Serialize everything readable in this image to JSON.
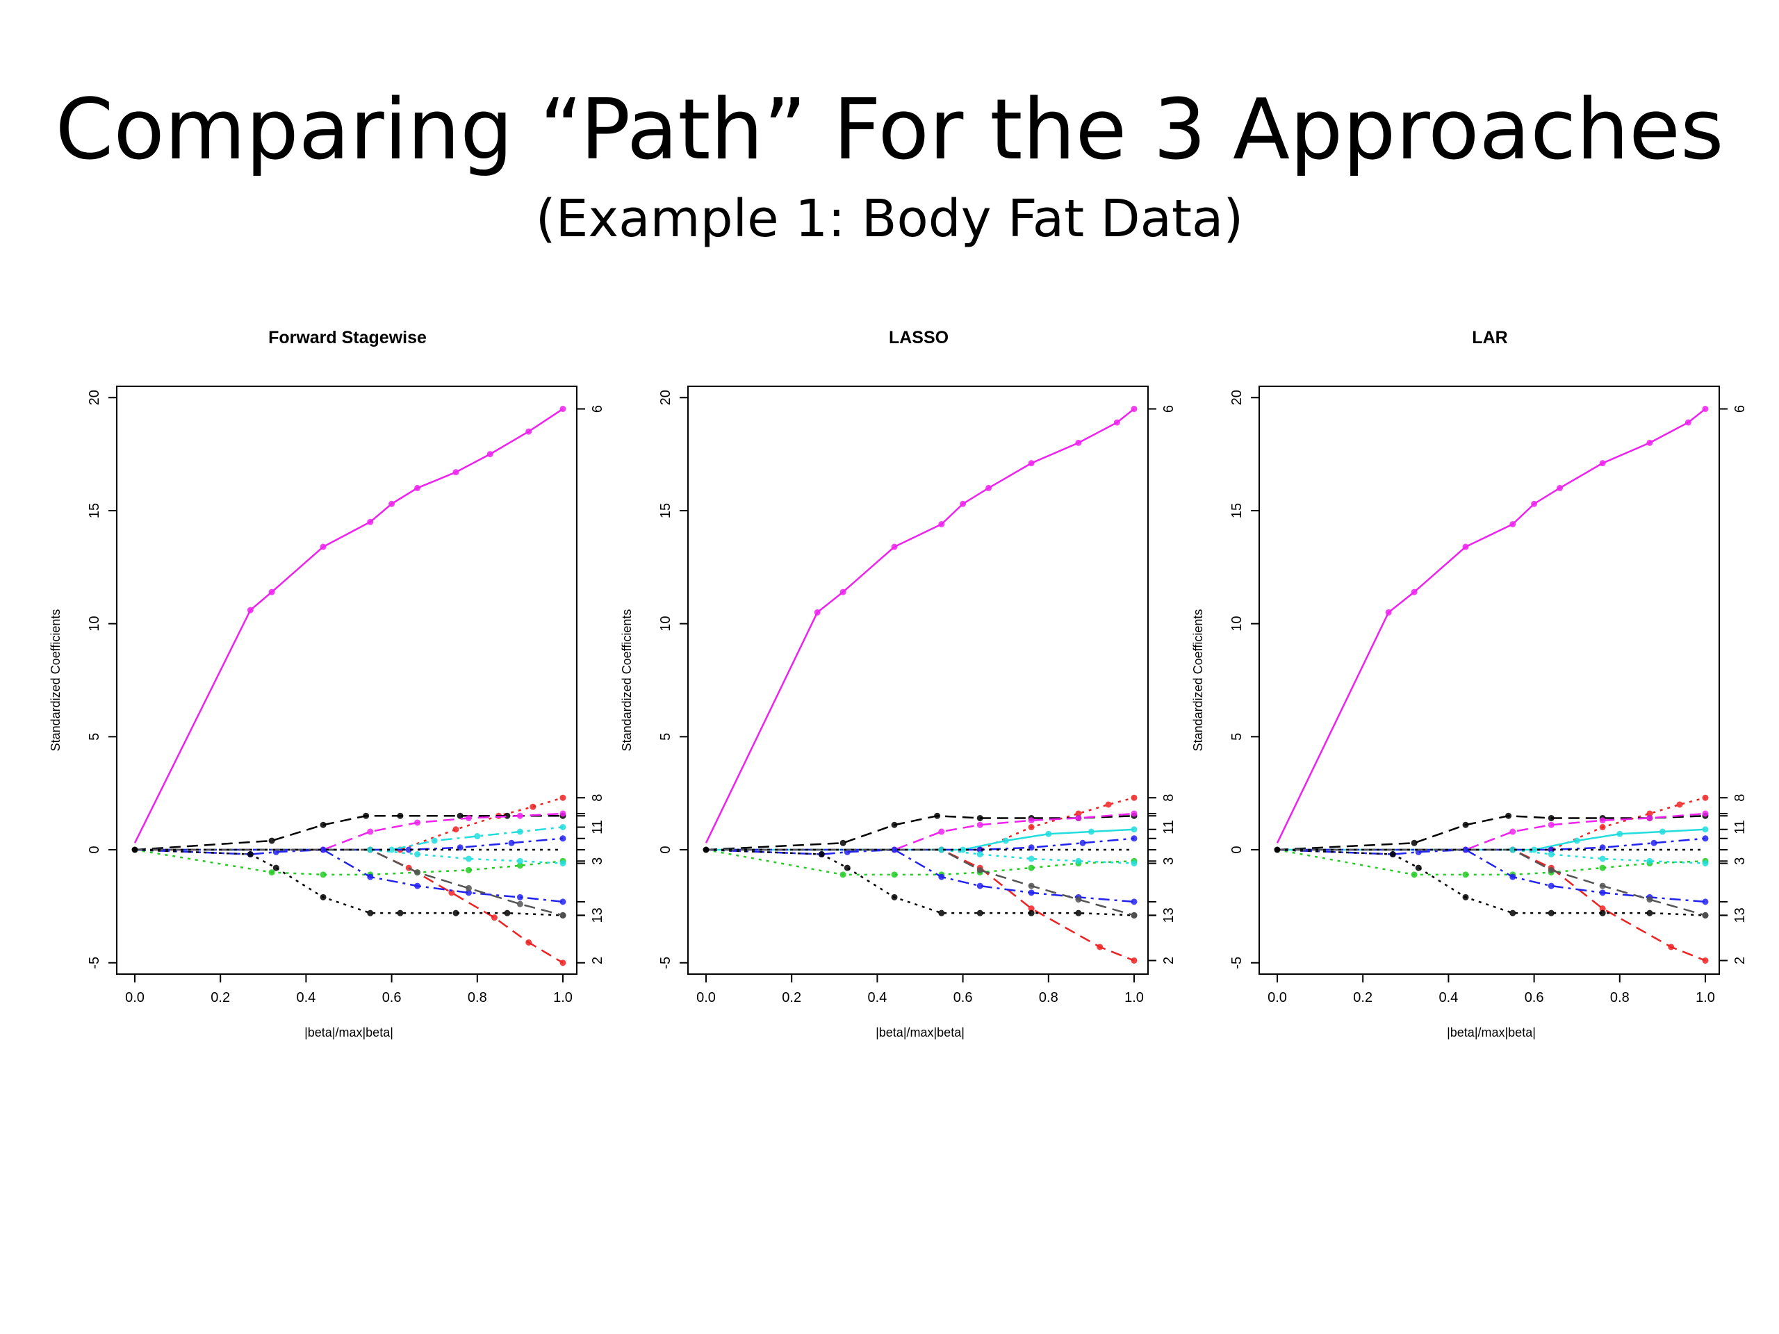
{
  "slide": {
    "title": "Comparing “Path” For the 3 Approaches",
    "subtitle": "(Example 1: Body Fat Data)"
  },
  "colors": {
    "magenta": "#ee22ee",
    "red": "#ee2222",
    "black": "#000000",
    "blue": "#2222ee",
    "cyan": "#22dddd",
    "green": "#22cc22",
    "gray": "#555555"
  },
  "chart_data": [
    {
      "type": "line",
      "title": "Forward Stagewise",
      "xlabel": "|beta|/max|beta|",
      "ylabel": "Standardized Coefficients",
      "xlim": [
        0,
        1
      ],
      "ylim": [
        -5.5,
        20.5
      ],
      "xticks": [
        "0.0",
        "0.2",
        "0.4",
        "0.6",
        "0.8",
        "1.0"
      ],
      "yticks": [
        "-5",
        "0",
        "5",
        "10",
        "15",
        "20"
      ],
      "right_labels": [
        "6",
        "8",
        "11",
        "3",
        "13",
        "2"
      ],
      "series": [
        {
          "color": "magenta",
          "dash": "solid-dash",
          "x": [
            0,
            0.27,
            0.32,
            0.44,
            0.55,
            0.6,
            0.66,
            0.75,
            0.83,
            0.92,
            1.0
          ],
          "y": [
            0.3,
            10.6,
            11.4,
            13.4,
            14.5,
            15.3,
            16.0,
            16.7,
            17.5,
            18.5,
            19.5
          ]
        },
        {
          "color": "red",
          "dash": "dash",
          "x": [
            0,
            0.55,
            0.64,
            0.74,
            0.84,
            0.92,
            1.0
          ],
          "y": [
            0,
            0,
            -0.8,
            -1.9,
            -3.0,
            -4.1,
            -5.0
          ]
        },
        {
          "color": "red",
          "dash": "dot",
          "x": [
            0,
            0.62,
            0.75,
            0.85,
            0.93,
            1.0
          ],
          "y": [
            0,
            0,
            0.9,
            1.5,
            1.9,
            2.3
          ]
        },
        {
          "color": "black",
          "dash": "dash",
          "x": [
            0,
            0.32,
            0.44,
            0.54,
            0.62,
            0.76,
            0.87,
            1.0
          ],
          "y": [
            0,
            0.4,
            1.1,
            1.5,
            1.5,
            1.5,
            1.5,
            1.5
          ]
        },
        {
          "color": "magenta",
          "dash": "dash",
          "x": [
            0,
            0.44,
            0.55,
            0.66,
            0.78,
            0.9,
            1.0
          ],
          "y": [
            0,
            0,
            0.8,
            1.2,
            1.4,
            1.5,
            1.6
          ]
        },
        {
          "color": "cyan",
          "dash": "dashdot",
          "x": [
            0,
            0.6,
            0.7,
            0.8,
            0.9,
            1.0
          ],
          "y": [
            0,
            0,
            0.4,
            0.6,
            0.8,
            1.0
          ]
        },
        {
          "color": "blue",
          "dash": "dashdot",
          "x": [
            0,
            0.64,
            0.76,
            0.88,
            1.0
          ],
          "y": [
            0,
            0,
            0.1,
            0.3,
            0.5
          ]
        },
        {
          "color": "green",
          "dash": "dot",
          "x": [
            0,
            0.32,
            0.44,
            0.55,
            0.66,
            0.78,
            0.9,
            1.0
          ],
          "y": [
            0,
            -1.0,
            -1.1,
            -1.1,
            -1.0,
            -0.9,
            -0.7,
            -0.5
          ]
        },
        {
          "color": "blue",
          "dash": "dashdot",
          "x": [
            0,
            0.27,
            0.33,
            0.44,
            0.55,
            0.66,
            0.78,
            0.9,
            1.0
          ],
          "y": [
            0,
            -0.2,
            -0.1,
            0,
            -1.2,
            -1.6,
            -1.9,
            -2.1,
            -2.3
          ]
        },
        {
          "color": "black",
          "dash": "dot",
          "x": [
            0,
            0.27,
            0.33,
            0.44,
            0.55,
            0.62,
            0.75,
            0.87,
            1.0
          ],
          "y": [
            0,
            -0.2,
            -0.8,
            -2.1,
            -2.8,
            -2.8,
            -2.8,
            -2.8,
            -2.9
          ]
        },
        {
          "color": "gray",
          "dash": "dash",
          "x": [
            0,
            0.55,
            0.66,
            0.78,
            0.9,
            1.0
          ],
          "y": [
            0,
            0,
            -1.0,
            -1.7,
            -2.4,
            -2.9
          ]
        },
        {
          "color": "cyan",
          "dash": "dot",
          "x": [
            0,
            0.55,
            0.66,
            0.78,
            0.9,
            1.0
          ],
          "y": [
            0,
            0,
            -0.2,
            -0.4,
            -0.5,
            -0.6
          ]
        },
        {
          "color": "black",
          "dash": "dot",
          "x": [
            0,
            1.0
          ],
          "y": [
            0,
            0
          ]
        }
      ]
    },
    {
      "type": "line",
      "title": "LASSO",
      "xlabel": "|beta|/max|beta|",
      "ylabel": "Standardized Coefficients",
      "xlim": [
        0,
        1
      ],
      "ylim": [
        -5.5,
        20.5
      ],
      "xticks": [
        "0.0",
        "0.2",
        "0.4",
        "0.6",
        "0.8",
        "1.0"
      ],
      "yticks": [
        "-5",
        "0",
        "5",
        "10",
        "15",
        "20"
      ],
      "right_labels": [
        "6",
        "8",
        "11",
        "3",
        "13",
        "2"
      ],
      "series": [
        {
          "color": "magenta",
          "dash": "solid-dash",
          "x": [
            0,
            0.26,
            0.32,
            0.44,
            0.55,
            0.6,
            0.66,
            0.76,
            0.87,
            0.96,
            1.0
          ],
          "y": [
            0.3,
            10.5,
            11.4,
            13.4,
            14.4,
            15.3,
            16.0,
            17.1,
            18.0,
            18.9,
            19.5
          ]
        },
        {
          "color": "red",
          "dash": "dash",
          "x": [
            0,
            0.55,
            0.64,
            0.76,
            0.92,
            1.0
          ],
          "y": [
            0,
            0,
            -0.8,
            -2.6,
            -4.3,
            -4.9
          ]
        },
        {
          "color": "red",
          "dash": "dot",
          "x": [
            0,
            0.64,
            0.76,
            0.87,
            0.94,
            1.0
          ],
          "y": [
            0,
            0,
            1.0,
            1.6,
            2.0,
            2.3
          ]
        },
        {
          "color": "black",
          "dash": "dash",
          "x": [
            0,
            0.32,
            0.44,
            0.54,
            0.64,
            0.76,
            0.87,
            1.0
          ],
          "y": [
            0,
            0.3,
            1.1,
            1.5,
            1.4,
            1.4,
            1.4,
            1.5
          ]
        },
        {
          "color": "magenta",
          "dash": "dash",
          "x": [
            0,
            0.44,
            0.55,
            0.64,
            0.76,
            0.87,
            1.0
          ],
          "y": [
            0,
            0,
            0.8,
            1.1,
            1.3,
            1.4,
            1.6
          ]
        },
        {
          "color": "cyan",
          "dash": "solid",
          "x": [
            0,
            0.6,
            0.7,
            0.8,
            0.9,
            1.0
          ],
          "y": [
            0,
            0,
            0.4,
            0.7,
            0.8,
            0.9
          ]
        },
        {
          "color": "blue",
          "dash": "dashdot",
          "x": [
            0,
            0.64,
            0.76,
            0.88,
            1.0
          ],
          "y": [
            0,
            0,
            0.1,
            0.3,
            0.5
          ]
        },
        {
          "color": "green",
          "dash": "dot",
          "x": [
            0,
            0.32,
            0.44,
            0.55,
            0.64,
            0.76,
            0.87,
            1.0
          ],
          "y": [
            0,
            -1.1,
            -1.1,
            -1.1,
            -1.0,
            -0.8,
            -0.6,
            -0.5
          ]
        },
        {
          "color": "blue",
          "dash": "dashdot",
          "x": [
            0,
            0.27,
            0.33,
            0.44,
            0.55,
            0.64,
            0.76,
            0.87,
            1.0
          ],
          "y": [
            0,
            -0.2,
            -0.1,
            0,
            -1.2,
            -1.6,
            -1.9,
            -2.1,
            -2.3
          ]
        },
        {
          "color": "black",
          "dash": "dot",
          "x": [
            0,
            0.27,
            0.33,
            0.44,
            0.55,
            0.64,
            0.76,
            0.87,
            1.0
          ],
          "y": [
            0,
            -0.2,
            -0.8,
            -2.1,
            -2.8,
            -2.8,
            -2.8,
            -2.8,
            -2.9
          ]
        },
        {
          "color": "gray",
          "dash": "dash",
          "x": [
            0,
            0.55,
            0.64,
            0.76,
            0.87,
            1.0
          ],
          "y": [
            0,
            0,
            -0.9,
            -1.6,
            -2.2,
            -2.9
          ]
        },
        {
          "color": "cyan",
          "dash": "dot",
          "x": [
            0,
            0.55,
            0.64,
            0.76,
            0.87,
            1.0
          ],
          "y": [
            0,
            0,
            -0.2,
            -0.4,
            -0.5,
            -0.6
          ]
        },
        {
          "color": "black",
          "dash": "dot",
          "x": [
            0,
            1.0
          ],
          "y": [
            0,
            0
          ]
        }
      ]
    },
    {
      "type": "line",
      "title": "LAR",
      "xlabel": "|beta|/max|beta|",
      "ylabel": "Standardized Coefficients",
      "xlim": [
        0,
        1
      ],
      "ylim": [
        -5.5,
        20.5
      ],
      "xticks": [
        "0.0",
        "0.2",
        "0.4",
        "0.6",
        "0.8",
        "1.0"
      ],
      "yticks": [
        "-5",
        "0",
        "5",
        "10",
        "15",
        "20"
      ],
      "right_labels": [
        "6",
        "8",
        "11",
        "3",
        "13",
        "2"
      ],
      "series": [
        {
          "color": "magenta",
          "dash": "solid-dash",
          "x": [
            0,
            0.26,
            0.32,
            0.44,
            0.55,
            0.6,
            0.66,
            0.76,
            0.87,
            0.96,
            1.0
          ],
          "y": [
            0.3,
            10.5,
            11.4,
            13.4,
            14.4,
            15.3,
            16.0,
            17.1,
            18.0,
            18.9,
            19.5
          ]
        },
        {
          "color": "red",
          "dash": "dash",
          "x": [
            0,
            0.55,
            0.64,
            0.76,
            0.92,
            1.0
          ],
          "y": [
            0,
            0,
            -0.8,
            -2.6,
            -4.3,
            -4.9
          ]
        },
        {
          "color": "red",
          "dash": "dot",
          "x": [
            0,
            0.64,
            0.76,
            0.87,
            0.94,
            1.0
          ],
          "y": [
            0,
            0,
            1.0,
            1.6,
            2.0,
            2.3
          ]
        },
        {
          "color": "black",
          "dash": "dash",
          "x": [
            0,
            0.32,
            0.44,
            0.54,
            0.64,
            0.76,
            0.87,
            1.0
          ],
          "y": [
            0,
            0.3,
            1.1,
            1.5,
            1.4,
            1.4,
            1.4,
            1.5
          ]
        },
        {
          "color": "magenta",
          "dash": "dash",
          "x": [
            0,
            0.44,
            0.55,
            0.64,
            0.76,
            0.87,
            1.0
          ],
          "y": [
            0,
            0,
            0.8,
            1.1,
            1.3,
            1.4,
            1.6
          ]
        },
        {
          "color": "cyan",
          "dash": "solid",
          "x": [
            0,
            0.6,
            0.7,
            0.8,
            0.9,
            1.0
          ],
          "y": [
            0,
            0,
            0.4,
            0.7,
            0.8,
            0.9
          ]
        },
        {
          "color": "blue",
          "dash": "dashdot",
          "x": [
            0,
            0.64,
            0.76,
            0.88,
            1.0
          ],
          "y": [
            0,
            0,
            0.1,
            0.3,
            0.5
          ]
        },
        {
          "color": "green",
          "dash": "dot",
          "x": [
            0,
            0.32,
            0.44,
            0.55,
            0.64,
            0.76,
            0.87,
            1.0
          ],
          "y": [
            0,
            -1.1,
            -1.1,
            -1.1,
            -1.0,
            -0.8,
            -0.6,
            -0.5
          ]
        },
        {
          "color": "blue",
          "dash": "dashdot",
          "x": [
            0,
            0.27,
            0.33,
            0.44,
            0.55,
            0.64,
            0.76,
            0.87,
            1.0
          ],
          "y": [
            0,
            -0.2,
            -0.1,
            0,
            -1.2,
            -1.6,
            -1.9,
            -2.1,
            -2.3
          ]
        },
        {
          "color": "black",
          "dash": "dot",
          "x": [
            0,
            0.27,
            0.33,
            0.44,
            0.55,
            0.64,
            0.76,
            0.87,
            1.0
          ],
          "y": [
            0,
            -0.2,
            -0.8,
            -2.1,
            -2.8,
            -2.8,
            -2.8,
            -2.8,
            -2.9
          ]
        },
        {
          "color": "gray",
          "dash": "dash",
          "x": [
            0,
            0.55,
            0.64,
            0.76,
            0.87,
            1.0
          ],
          "y": [
            0,
            0,
            -0.9,
            -1.6,
            -2.2,
            -2.9
          ]
        },
        {
          "color": "cyan",
          "dash": "dot",
          "x": [
            0,
            0.55,
            0.64,
            0.76,
            0.87,
            1.0
          ],
          "y": [
            0,
            0,
            -0.2,
            -0.4,
            -0.5,
            -0.6
          ]
        },
        {
          "color": "black",
          "dash": "dot",
          "x": [
            0,
            1.0
          ],
          "y": [
            0,
            0
          ]
        }
      ]
    }
  ]
}
